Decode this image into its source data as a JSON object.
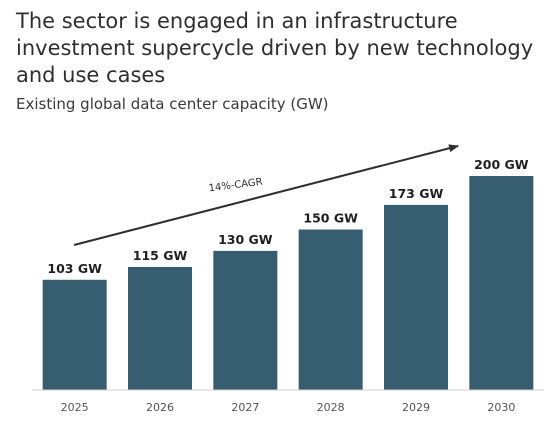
{
  "header": {
    "title": "The sector is engaged in an infrastructure investment supercycle driven by new technology and use cases",
    "subtitle": "Existing global data center capacity (GW)"
  },
  "chart_data": {
    "type": "bar",
    "title": "The sector is engaged in an infrastructure investment supercycle driven by new technology and use cases",
    "subtitle": "Existing global data center capacity (GW)",
    "categories": [
      "2025",
      "2026",
      "2027",
      "2028",
      "2029",
      "2030"
    ],
    "values": [
      103,
      115,
      130,
      150,
      173,
      200
    ],
    "data_labels": [
      "103 GW",
      "115 GW",
      "130 GW",
      "150 GW",
      "173 GW",
      "200 GW"
    ],
    "annotation": "14%-CAGR",
    "ylim": [
      0,
      200
    ],
    "bar_color": "#375e70",
    "arrow_color": "#2f2f2f",
    "grid": false,
    "legend": "none"
  }
}
